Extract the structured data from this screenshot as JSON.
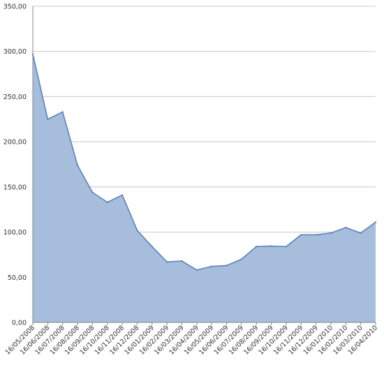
{
  "chart_data": {
    "type": "area",
    "title": "",
    "xlabel": "",
    "ylabel": "",
    "categories": [
      "16/05/2008",
      "16/06/2008",
      "16/07/2008",
      "16/08/2008",
      "16/09/2008",
      "16/10/2008",
      "16/11/2008",
      "16/12/2008",
      "16/01/2009",
      "16/02/2009",
      "16/03/2009",
      "16/04/2009",
      "16/05/2009",
      "16/06/2009",
      "16/07/2009",
      "16/08/2009",
      "16/09/2009",
      "16/10/2009",
      "16/11/2009",
      "16/12/2009",
      "16/01/2010",
      "16/02/2010",
      "16/03/2010",
      "16/04/2010"
    ],
    "values": [
      297,
      225,
      233,
      174,
      144,
      133,
      141,
      102,
      84,
      67,
      68,
      58,
      62,
      63,
      70,
      84,
      84.5,
      84,
      97,
      97,
      99,
      105,
      99,
      111
    ],
    "ylim": [
      0,
      350
    ],
    "yticks": [
      0,
      50,
      100,
      150,
      200,
      250,
      300,
      350
    ],
    "ytick_labels": [
      "0,00",
      "50,00",
      "100,00",
      "150,00",
      "200,00",
      "250,00",
      "300,00",
      "350,00"
    ],
    "grid": true,
    "legend": "none",
    "colors": {
      "fill": "#a6bddb",
      "line": "#5b82bd",
      "grid": "#c8c8c8"
    }
  }
}
